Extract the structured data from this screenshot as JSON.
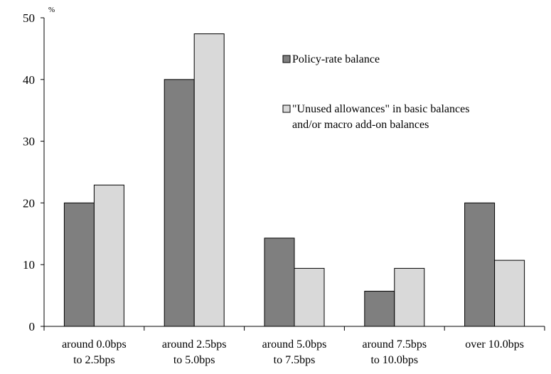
{
  "chart_data": {
    "type": "bar",
    "unit_label": "%",
    "categories": [
      [
        "around 0.0bps",
        "to 2.5bps"
      ],
      [
        "around 2.5bps",
        "to 5.0bps"
      ],
      [
        "around 5.0bps",
        "to 7.5bps"
      ],
      [
        "around 7.5bps",
        "to 10.0bps"
      ],
      [
        "over 10.0bps"
      ]
    ],
    "series": [
      {
        "name": "Policy-rate balance",
        "name_lines": [
          "Policy-rate balance"
        ],
        "color": "#7f7f7f",
        "values": [
          20.0,
          40.0,
          14.3,
          5.7,
          20.0
        ]
      },
      {
        "name": "\"Unused allowances\" in basic balances and/or macro add-on balances",
        "name_lines": [
          "\"Unused allowances\" in basic balances",
          "and/or macro add-on balances"
        ],
        "color": "#d9d9d9",
        "values": [
          22.9,
          47.4,
          9.4,
          9.4,
          10.7
        ]
      }
    ],
    "yticks": [
      0,
      10,
      20,
      30,
      40,
      50
    ],
    "ylim": [
      0,
      50
    ],
    "xlabel": "",
    "ylabel": "",
    "title": "",
    "legend": "upper-middle",
    "grid": false
  }
}
